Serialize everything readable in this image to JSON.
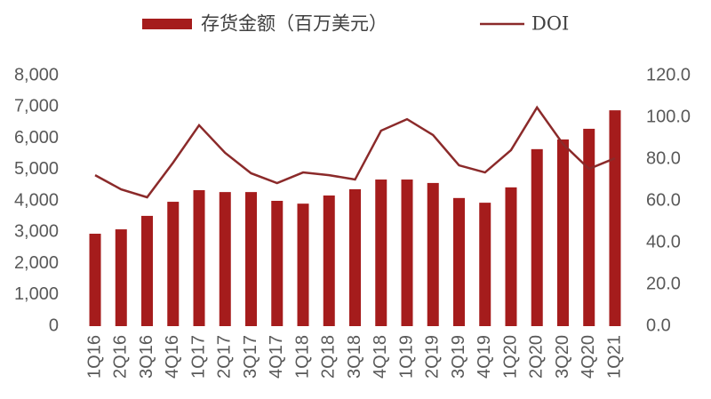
{
  "chart_data": {
    "type": "bar-line",
    "categories": [
      "1Q16",
      "2Q16",
      "3Q16",
      "4Q16",
      "1Q17",
      "2Q17",
      "3Q17",
      "4Q17",
      "1Q18",
      "2Q18",
      "3Q18",
      "4Q18",
      "1Q19",
      "2Q19",
      "3Q19",
      "4Q19",
      "1Q20",
      "2Q20",
      "3Q20",
      "4Q20",
      "1Q21"
    ],
    "series": [
      {
        "name": "存货金额（百万美元）",
        "type": "bar",
        "color": "#a51c1c",
        "values": [
          2950,
          3090,
          3520,
          3970,
          4340,
          4280,
          4280,
          4000,
          3910,
          4170,
          4370,
          4680,
          4680,
          4570,
          4090,
          3940,
          4430,
          5650,
          5960,
          6300,
          6890
        ]
      },
      {
        "name": "DOI",
        "type": "line",
        "axis": "y2",
        "color": "#8b2a2a",
        "values": [
          72.3,
          65.5,
          61.7,
          78.3,
          96.2,
          83.0,
          73.2,
          68.5,
          73.6,
          72.3,
          70.2,
          93.6,
          99.1,
          91.5,
          77.0,
          73.6,
          84.3,
          104.7,
          87.2,
          75.3,
          80.4
        ]
      }
    ],
    "ylim": [
      0,
      8000
    ],
    "yticks": [
      0,
      {
        "value": 1000,
        "label": "1,000"
      },
      {
        "value": 2000,
        "label": "2,000"
      },
      {
        "value": 3000,
        "label": "3,000"
      },
      {
        "value": 4000,
        "label": "4,000"
      },
      {
        "value": 5000,
        "label": "5,000"
      },
      {
        "value": 6000,
        "label": "6,000"
      },
      {
        "value": 7000,
        "label": "7,000"
      },
      {
        "value": 8000,
        "label": "8,000"
      }
    ],
    "y2lim": [
      0,
      120
    ],
    "y2ticks": [
      {
        "value": 0,
        "label": "0.0"
      },
      {
        "value": 20,
        "label": "20.0"
      },
      {
        "value": 40,
        "label": "40.0"
      },
      {
        "value": 60,
        "label": "60.0"
      },
      {
        "value": 80,
        "label": "80.0"
      },
      {
        "value": 100,
        "label": "100.0"
      },
      {
        "value": 120,
        "label": "120.0"
      }
    ],
    "legend": "top"
  }
}
